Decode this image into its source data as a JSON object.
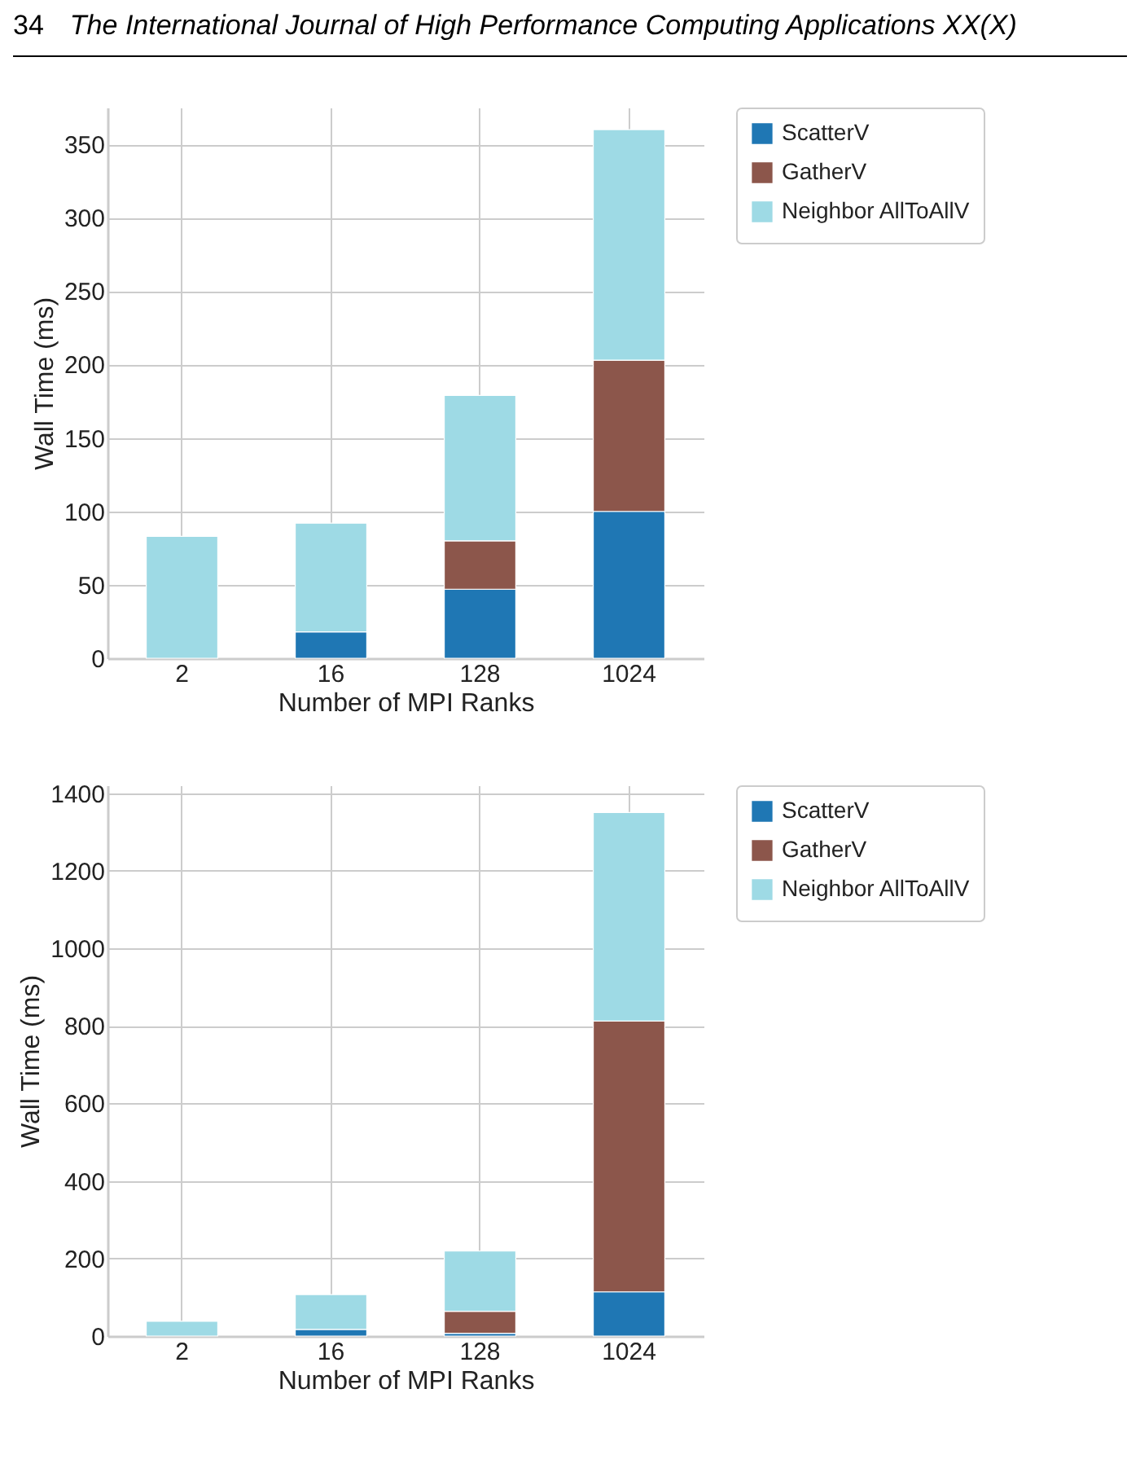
{
  "chart_data": [
    {
      "type": "bar",
      "stacked": true,
      "annotations": [
        "34",
        "The International Journal of High Performance Computing Applications XX(X)"
      ],
      "xlabel": "Number of MPI Ranks",
      "ylabel": "Wall Time (ms)",
      "categories": [
        "2",
        "16",
        "128",
        "1024"
      ],
      "ylim": [
        0,
        375
      ],
      "yticks": [
        0,
        50,
        100,
        150,
        200,
        250,
        300,
        350
      ],
      "grid": true,
      "legend": "top right",
      "series": [
        {
          "name": "ScatterV",
          "color": "#1f77b4",
          "values": [
            null,
            18,
            47,
            100
          ]
        },
        {
          "name": "GatherV",
          "color": "#8c564b",
          "values": [
            null,
            null,
            33,
            103
          ]
        },
        {
          "name": "Neighbor AllToAllV",
          "color": "#9edae5",
          "values": [
            83,
            74,
            99,
            157
          ]
        }
      ]
    },
    {
      "type": "bar",
      "stacked": true,
      "xlabel": "Number of MPI Ranks",
      "ylabel": "Wall Time (ms)",
      "categories": [
        "2",
        "16",
        "128",
        "1024"
      ],
      "ylim": [
        0,
        1420
      ],
      "yticks": [
        0,
        200,
        400,
        600,
        800,
        1000,
        1200,
        1400
      ],
      "grid": true,
      "legend": "top right",
      "series": [
        {
          "name": "ScatterV",
          "color": "#1f77b4",
          "values": [
            null,
            17,
            7,
            114
          ]
        },
        {
          "name": "GatherV",
          "color": "#8c564b",
          "values": [
            null,
            null,
            57,
            698
          ]
        },
        {
          "name": "Neighbor AllToAllV",
          "color": "#9edae5",
          "values": [
            38,
            90,
            155,
            538
          ]
        }
      ]
    }
  ]
}
